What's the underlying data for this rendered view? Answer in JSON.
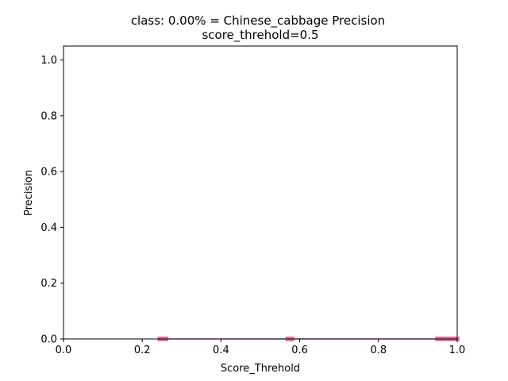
{
  "chart_data": {
    "type": "line",
    "title": "class: 0.00% = Chinese_cabbage Precision",
    "subtitle": "score_threhold=0.5",
    "xlabel": "Score_Threhold",
    "ylabel": "Precision",
    "xlim": [
      0.0,
      1.0
    ],
    "ylim": [
      0.0,
      1.05
    ],
    "xticks": [
      "0.0",
      "0.2",
      "0.4",
      "0.6",
      "0.8",
      "1.0"
    ],
    "yticks": [
      "0.0",
      "0.2",
      "0.4",
      "0.6",
      "0.8",
      "1.0"
    ],
    "grid": false,
    "series": [
      {
        "color": "#e0739a",
        "x": [
          0.245,
          0.25,
          0.255,
          0.26,
          0.57,
          0.575,
          0.58,
          0.95,
          0.955,
          0.96,
          0.97,
          0.975,
          0.98,
          0.985,
          0.99,
          0.995,
          1.0
        ],
        "y": [
          0,
          0,
          0,
          0,
          0,
          0,
          0,
          0,
          0,
          0,
          0,
          0,
          0,
          0,
          0,
          0,
          0
        ]
      }
    ]
  }
}
